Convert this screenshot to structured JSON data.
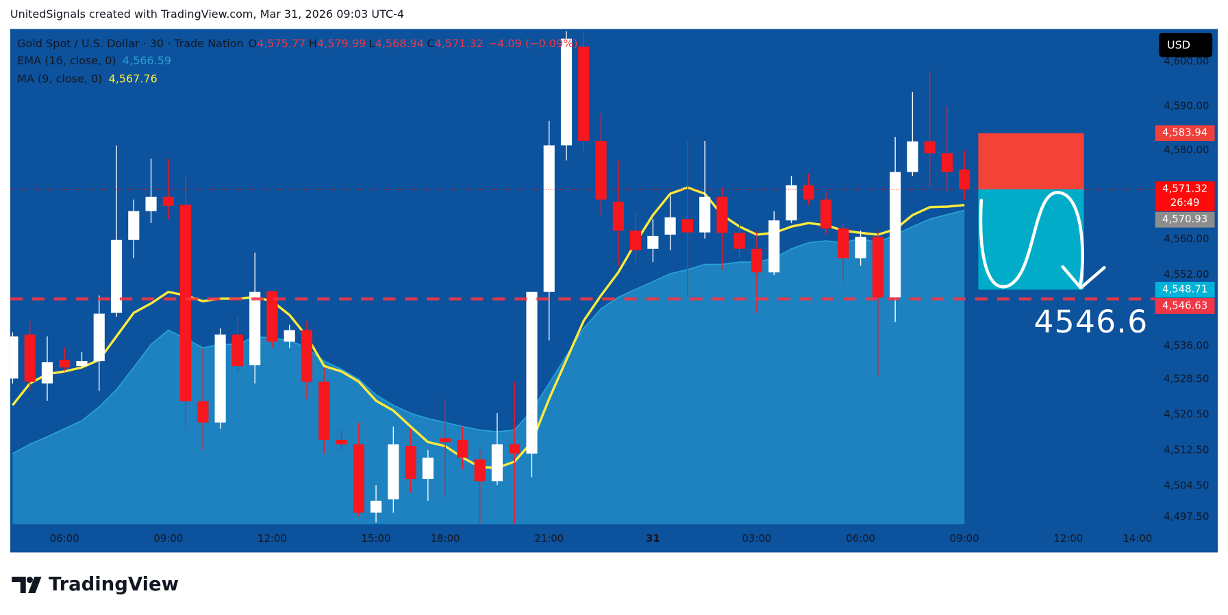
{
  "header": "UnitedSignals created with TradingView.com, Mar 31, 2026 09:03 UTC-4",
  "chart_data": {
    "type": "candlestick",
    "title": "Gold Spot / U.S. Dollar · 30 · Trade Nation",
    "legend": {
      "fields": [
        "O",
        "H",
        "L",
        "C"
      ],
      "value_labels": [
        "4,575.77",
        "4,579.99",
        "4,568.94",
        "4,571.32"
      ],
      "change_label": "−4.09 (−0.09%)",
      "color": "#f23645"
    },
    "x": [
      0,
      1,
      2,
      3,
      4,
      5,
      6,
      7,
      8,
      9,
      10,
      11,
      12,
      13,
      14,
      15,
      16,
      17,
      18,
      19,
      20,
      21,
      22,
      23,
      24,
      25,
      26,
      27,
      28,
      29,
      30,
      31,
      32,
      33,
      34,
      35,
      36,
      37,
      38,
      39,
      40,
      41,
      42,
      43,
      44,
      45,
      46,
      47,
      48,
      49,
      50,
      51,
      52,
      53,
      54,
      55
    ],
    "open": [
      4528.7,
      4538.6,
      4527.6,
      4532.9,
      4531.5,
      4532.6,
      4543.5,
      4559.9,
      4566.4,
      4569.6,
      4567.8,
      4523.6,
      4518.8,
      4538.6,
      4531.7,
      4548.4,
      4537.0,
      4539.6,
      4528.0,
      4514.9,
      4513.9,
      4498.5,
      4501.5,
      4513.5,
      4506.1,
      4515.3,
      4514.9,
      4510.5,
      4505.6,
      4513.9,
      4511.8,
      4548.2,
      4581.2,
      4603.4,
      4582.2,
      4568.5,
      4562.0,
      4557.9,
      4561.1,
      4564.6,
      4561.6,
      4569.6,
      4561.5,
      4557.9,
      4552.6,
      4564.3,
      4572.2,
      4569.0,
      4562.5,
      4555.8,
      4560.6,
      4547.0,
      4575.2,
      4582.1,
      4579.4,
      4575.77
    ],
    "high": [
      4539.1,
      4541.7,
      4538.2,
      4535.6,
      4534.7,
      4547.4,
      4581.2,
      4569.0,
      4578.2,
      4578.2,
      4574.3,
      4535.6,
      4540.0,
      4542.6,
      4557.0,
      4548.4,
      4540.8,
      4541.7,
      4531.2,
      4517.1,
      4518.8,
      4504.7,
      4517.9,
      4517.4,
      4512.6,
      4524.1,
      4517.9,
      4512.6,
      4520.9,
      4528.0,
      4548.2,
      4586.7,
      4606.9,
      4606.9,
      4588.4,
      4577.8,
      4566.4,
      4564.6,
      4569.9,
      4582.2,
      4582.2,
      4571.7,
      4563.7,
      4562.0,
      4566.4,
      4574.3,
      4574.8,
      4570.8,
      4563.7,
      4562.0,
      4562.0,
      4583.1,
      4593.2,
      4597.8,
      4590.0,
      4579.99
    ],
    "low": [
      4527.6,
      4525.9,
      4523.7,
      4530.3,
      4531.1,
      4525.9,
      4542.6,
      4555.8,
      4563.7,
      4564.6,
      4517.1,
      4512.6,
      4517.4,
      4530.3,
      4527.6,
      4535.6,
      4535.6,
      4524.1,
      4511.8,
      4512.6,
      4497.7,
      4496.3,
      4498.5,
      4503.0,
      4501.2,
      4502.1,
      4508.2,
      4496.0,
      4504.7,
      4496.0,
      4506.5,
      4537.3,
      4577.8,
      4579.6,
      4565.5,
      4554.1,
      4554.1,
      4554.9,
      4557.6,
      4547.0,
      4560.2,
      4553.2,
      4555.8,
      4543.5,
      4552.0,
      4563.7,
      4567.8,
      4561.1,
      4550.5,
      4554.1,
      4529.4,
      4541.4,
      4574.3,
      4571.7,
      4570.8,
      4568.94
    ],
    "close": [
      4538.2,
      4528.0,
      4532.4,
      4531.2,
      4532.6,
      4543.3,
      4559.9,
      4566.4,
      4569.6,
      4567.6,
      4523.6,
      4518.8,
      4538.6,
      4531.5,
      4548.2,
      4537.0,
      4539.6,
      4528.0,
      4514.9,
      4513.9,
      4498.5,
      4501.2,
      4513.9,
      4506.1,
      4510.9,
      4514.4,
      4510.9,
      4505.6,
      4513.9,
      4511.8,
      4548.2,
      4581.2,
      4605.2,
      4582.2,
      4569.0,
      4562.0,
      4557.6,
      4560.8,
      4565.0,
      4561.6,
      4569.6,
      4561.5,
      4557.9,
      4552.6,
      4564.3,
      4572.2,
      4569.0,
      4562.5,
      4555.8,
      4560.6,
      4547.0,
      4575.2,
      4582.1,
      4579.4,
      4575.2,
      4571.32
    ],
    "up_color": "#ffffff",
    "down_color": "#f7171e",
    "indicators": [
      {
        "name": "EMA (16, close, 0)",
        "color": "#29a3d6",
        "fill": true,
        "last_label": "4,566.59",
        "values": [
          4511.8,
          4513.9,
          4515.6,
          4517.4,
          4519.2,
          4522.3,
          4526.2,
          4531.2,
          4536.4,
          4539.6,
          4537.7,
          4535.6,
          4536.4,
          4536.4,
          4538.2,
          4537.8,
          4537.3,
          4535.6,
          4532.6,
          4530.8,
          4528.5,
          4525.0,
          4522.7,
          4520.9,
          4519.7,
          4518.8,
          4517.9,
          4517.1,
          4516.7,
          4517.1,
          4521.5,
          4527.6,
          4533.8,
          4540.0,
          4544.4,
          4547.0,
          4548.8,
          4550.5,
          4552.3,
          4553.2,
          4554.4,
          4554.4,
          4554.9,
          4554.9,
          4555.8,
          4557.9,
          4559.3,
          4559.7,
          4559.3,
          4560.2,
          4559.3,
          4561.1,
          4562.9,
          4564.6,
          4565.6,
          4566.59
        ]
      },
      {
        "name": "MA (9, close, 0)",
        "color": "#ffeb3b",
        "fill": false,
        "last_label": "4,567.76",
        "values": [
          4522.7,
          4527.6,
          4529.7,
          4530.3,
          4531.2,
          4532.9,
          4538.2,
          4543.5,
          4545.6,
          4548.2,
          4547.4,
          4546.1,
          4546.7,
          4546.7,
          4547.0,
          4546.1,
          4543.0,
          4538.2,
          4531.5,
          4530.3,
          4528.0,
          4523.7,
          4521.5,
          4517.9,
          4514.4,
          4513.5,
          4510.9,
          4508.8,
          4508.6,
          4510.0,
          4514.4,
          4524.1,
          4532.9,
          4541.7,
          4547.4,
          4552.6,
          4559.3,
          4565.5,
          4570.3,
          4571.7,
          4570.3,
          4565.5,
          4562.9,
          4561.1,
          4561.5,
          4562.9,
          4563.7,
          4563.2,
          4562.0,
          4561.5,
          4561.1,
          4562.3,
          4565.5,
          4567.3,
          4567.4,
          4567.76
        ]
      }
    ],
    "xlim": [
      -0.14,
      66.02
    ],
    "xticks": [
      {
        "value": 3,
        "label": "06:00"
      },
      {
        "value": 9,
        "label": "09:00"
      },
      {
        "value": 15,
        "label": "12:00"
      },
      {
        "value": 21,
        "label": "15:00"
      },
      {
        "value": 25,
        "label": "18:00"
      },
      {
        "value": 31,
        "label": "21:00"
      },
      {
        "value": 37,
        "label": "31"
      },
      {
        "value": 43,
        "label": "03:00"
      },
      {
        "value": 49,
        "label": "06:00"
      },
      {
        "value": 55,
        "label": "09:00"
      },
      {
        "value": 61,
        "label": "12:00"
      },
      {
        "value": 65,
        "label": "14:00"
      }
    ],
    "ylim": [
      4495.9,
      4607.4
    ],
    "yticks": [
      {
        "value": 4600,
        "label": "4,600.00"
      },
      {
        "value": 4590,
        "label": "4,590.00"
      },
      {
        "value": 4580,
        "label": "4,580.00"
      },
      {
        "value": 4560,
        "label": "4,560.00"
      },
      {
        "value": 4552,
        "label": "4,552.00"
      },
      {
        "value": 4536,
        "label": "4,536.00"
      },
      {
        "value": 4528.5,
        "label": "4,528.50"
      },
      {
        "value": 4520.5,
        "label": "4,520.50"
      },
      {
        "value": 4512.5,
        "label": "4,512.50"
      },
      {
        "value": 4504.5,
        "label": "4,504.50"
      },
      {
        "value": 4497.5,
        "label": "4,497.50"
      }
    ],
    "currency": "USD",
    "price_labels": [
      {
        "value": 4583.94,
        "label": "4,583.94",
        "color": "#f0403c"
      },
      {
        "value": 4571.32,
        "label": "4,571.32",
        "sub": "26:49",
        "color": "#ff0a0a"
      },
      {
        "value": 4570.93,
        "label": "4,570.93",
        "color": "#8c8c8c"
      },
      {
        "value": 4548.71,
        "label": "4,548.71",
        "color": "#00b4d8"
      },
      {
        "value": 4546.63,
        "label": "4,546.63",
        "color": "#f23645"
      }
    ],
    "position": {
      "x_range": [
        55.8,
        61.9
      ],
      "stop_color": "#f44336",
      "target_color": "#00acc8"
    },
    "annotation": "4546.6"
  },
  "footer": "TradingView"
}
